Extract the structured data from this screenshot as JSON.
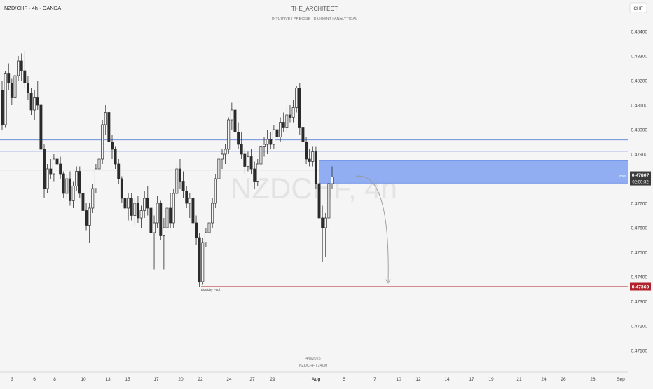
{
  "symbol_label": "NZD/CHF · 4h · OANDA",
  "header": {
    "title": "THE_ARCHITECT",
    "subtitle": "INTUITIVE | PRECISE | DILIGENT | ANALYTICAL"
  },
  "watermark": "NZDCHF, 4h",
  "footer": {
    "date": "4/8/2025",
    "symbol": "NZDCHF | 240M"
  },
  "currency_label": "CHF",
  "colors": {
    "background": "#f5f5f5",
    "candle_body": "#2b2b2b",
    "zone_fill": "#86a6f3",
    "level_line": "#5a82d8",
    "liquidity_line": "#b0222c",
    "price_badge": "#3a3a3a"
  },
  "chart_data": {
    "type": "candlestick",
    "ylim": [
      0.4705,
      0.4845
    ],
    "y_ticks": [
      "0.48400",
      "0.48300",
      "0.48200",
      "0.48100",
      "0.48000",
      "0.47900",
      "0.47700",
      "0.47600",
      "0.47500",
      "0.47400",
      "0.47300",
      "0.47200",
      "0.47100"
    ],
    "x_ticks": [
      "3",
      "6",
      "8",
      "10",
      "13",
      "15",
      "17",
      "20",
      "22",
      "24",
      "27",
      "29",
      "Aug",
      "5",
      "7",
      "10",
      "12",
      "14",
      "17",
      "19",
      "21",
      "24",
      "26",
      "28",
      "Sep"
    ],
    "current_price": "0.47807",
    "countdown": "02:00:32",
    "liquidity_price": "0.47360",
    "liquidity_label": "Liquidity Pool",
    "horizontal_levels": [
      0.47958,
      0.47912,
      0.47835
    ],
    "zone": {
      "top": 0.47876,
      "bottom": 0.47782,
      "label": "6580"
    },
    "projection": {
      "start_price": 0.4781,
      "end_price": 0.47375
    },
    "candles": [
      {
        "o": 0.4816,
        "h": 0.482,
        "l": 0.48,
        "c": 0.4802
      },
      {
        "o": 0.4802,
        "h": 0.4824,
        "l": 0.4801,
        "c": 0.4823
      },
      {
        "o": 0.4823,
        "h": 0.4827,
        "l": 0.4816,
        "c": 0.4819
      },
      {
        "o": 0.4819,
        "h": 0.4821,
        "l": 0.481,
        "c": 0.4813
      },
      {
        "o": 0.4813,
        "h": 0.4824,
        "l": 0.4811,
        "c": 0.4822
      },
      {
        "o": 0.4822,
        "h": 0.483,
        "l": 0.482,
        "c": 0.4828
      },
      {
        "o": 0.4828,
        "h": 0.4831,
        "l": 0.482,
        "c": 0.4824
      },
      {
        "o": 0.4824,
        "h": 0.4832,
        "l": 0.4817,
        "c": 0.4819
      },
      {
        "o": 0.4819,
        "h": 0.4822,
        "l": 0.4812,
        "c": 0.4815
      },
      {
        "o": 0.4815,
        "h": 0.4817,
        "l": 0.4806,
        "c": 0.4808
      },
      {
        "o": 0.4808,
        "h": 0.4816,
        "l": 0.4804,
        "c": 0.4813
      },
      {
        "o": 0.4813,
        "h": 0.482,
        "l": 0.4808,
        "c": 0.481
      },
      {
        "o": 0.481,
        "h": 0.4811,
        "l": 0.479,
        "c": 0.4792
      },
      {
        "o": 0.4792,
        "h": 0.4794,
        "l": 0.4772,
        "c": 0.4776
      },
      {
        "o": 0.4776,
        "h": 0.4786,
        "l": 0.4774,
        "c": 0.4784
      },
      {
        "o": 0.4784,
        "h": 0.4788,
        "l": 0.478,
        "c": 0.4782
      },
      {
        "o": 0.4782,
        "h": 0.479,
        "l": 0.4779,
        "c": 0.4788
      },
      {
        "o": 0.4788,
        "h": 0.4792,
        "l": 0.4783,
        "c": 0.4786
      },
      {
        "o": 0.4786,
        "h": 0.4789,
        "l": 0.478,
        "c": 0.4782
      },
      {
        "o": 0.4782,
        "h": 0.4783,
        "l": 0.4772,
        "c": 0.4774
      },
      {
        "o": 0.4774,
        "h": 0.4782,
        "l": 0.4772,
        "c": 0.478
      },
      {
        "o": 0.478,
        "h": 0.4783,
        "l": 0.4769,
        "c": 0.4771
      },
      {
        "o": 0.4771,
        "h": 0.4779,
        "l": 0.4768,
        "c": 0.4777
      },
      {
        "o": 0.4777,
        "h": 0.4785,
        "l": 0.4775,
        "c": 0.4783
      },
      {
        "o": 0.4783,
        "h": 0.4785,
        "l": 0.4772,
        "c": 0.4774
      },
      {
        "o": 0.4774,
        "h": 0.4776,
        "l": 0.4765,
        "c": 0.4767
      },
      {
        "o": 0.4767,
        "h": 0.477,
        "l": 0.4759,
        "c": 0.4761
      },
      {
        "o": 0.4761,
        "h": 0.477,
        "l": 0.4754,
        "c": 0.4768
      },
      {
        "o": 0.4768,
        "h": 0.4778,
        "l": 0.4766,
        "c": 0.4776
      },
      {
        "o": 0.4776,
        "h": 0.4786,
        "l": 0.4774,
        "c": 0.4784
      },
      {
        "o": 0.4784,
        "h": 0.479,
        "l": 0.4782,
        "c": 0.4788
      },
      {
        "o": 0.4788,
        "h": 0.4804,
        "l": 0.4786,
        "c": 0.4802
      },
      {
        "o": 0.4802,
        "h": 0.481,
        "l": 0.4798,
        "c": 0.4807
      },
      {
        "o": 0.4807,
        "h": 0.4808,
        "l": 0.4793,
        "c": 0.4795
      },
      {
        "o": 0.4795,
        "h": 0.4798,
        "l": 0.4788,
        "c": 0.4792
      },
      {
        "o": 0.4792,
        "h": 0.4793,
        "l": 0.4784,
        "c": 0.4786
      },
      {
        "o": 0.4786,
        "h": 0.4788,
        "l": 0.4778,
        "c": 0.478
      },
      {
        "o": 0.478,
        "h": 0.4781,
        "l": 0.477,
        "c": 0.4772
      },
      {
        "o": 0.4772,
        "h": 0.4776,
        "l": 0.4766,
        "c": 0.4768
      },
      {
        "o": 0.4768,
        "h": 0.4774,
        "l": 0.4763,
        "c": 0.4772
      },
      {
        "o": 0.4772,
        "h": 0.4774,
        "l": 0.4763,
        "c": 0.4765
      },
      {
        "o": 0.4765,
        "h": 0.4772,
        "l": 0.4761,
        "c": 0.477
      },
      {
        "o": 0.477,
        "h": 0.4773,
        "l": 0.4762,
        "c": 0.4764
      },
      {
        "o": 0.4764,
        "h": 0.4769,
        "l": 0.476,
        "c": 0.4767
      },
      {
        "o": 0.4767,
        "h": 0.4775,
        "l": 0.4764,
        "c": 0.4772
      },
      {
        "o": 0.4772,
        "h": 0.4777,
        "l": 0.4765,
        "c": 0.4768
      },
      {
        "o": 0.4768,
        "h": 0.477,
        "l": 0.4755,
        "c": 0.4758
      },
      {
        "o": 0.4758,
        "h": 0.4765,
        "l": 0.4743,
        "c": 0.4762
      },
      {
        "o": 0.4762,
        "h": 0.4773,
        "l": 0.476,
        "c": 0.477
      },
      {
        "o": 0.477,
        "h": 0.4771,
        "l": 0.4755,
        "c": 0.4757
      },
      {
        "o": 0.4757,
        "h": 0.4764,
        "l": 0.4743,
        "c": 0.476
      },
      {
        "o": 0.476,
        "h": 0.477,
        "l": 0.4758,
        "c": 0.4768
      },
      {
        "o": 0.4768,
        "h": 0.4774,
        "l": 0.476,
        "c": 0.4762
      },
      {
        "o": 0.4762,
        "h": 0.4776,
        "l": 0.476,
        "c": 0.4774
      },
      {
        "o": 0.4774,
        "h": 0.4786,
        "l": 0.4772,
        "c": 0.4784
      },
      {
        "o": 0.4784,
        "h": 0.4788,
        "l": 0.4776,
        "c": 0.4779
      },
      {
        "o": 0.4779,
        "h": 0.4783,
        "l": 0.4772,
        "c": 0.4775
      },
      {
        "o": 0.4775,
        "h": 0.4777,
        "l": 0.4768,
        "c": 0.477
      },
      {
        "o": 0.477,
        "h": 0.4774,
        "l": 0.4764,
        "c": 0.4772
      },
      {
        "o": 0.4772,
        "h": 0.4774,
        "l": 0.476,
        "c": 0.4762
      },
      {
        "o": 0.4762,
        "h": 0.4765,
        "l": 0.4753,
        "c": 0.4756
      },
      {
        "o": 0.4756,
        "h": 0.4758,
        "l": 0.4736,
        "c": 0.4738
      },
      {
        "o": 0.4738,
        "h": 0.4756,
        "l": 0.4737,
        "c": 0.4754
      },
      {
        "o": 0.4754,
        "h": 0.476,
        "l": 0.4752,
        "c": 0.4758
      },
      {
        "o": 0.4758,
        "h": 0.4764,
        "l": 0.4756,
        "c": 0.4762
      },
      {
        "o": 0.4762,
        "h": 0.4772,
        "l": 0.476,
        "c": 0.477
      },
      {
        "o": 0.477,
        "h": 0.4782,
        "l": 0.4768,
        "c": 0.478
      },
      {
        "o": 0.478,
        "h": 0.479,
        "l": 0.4778,
        "c": 0.4788
      },
      {
        "o": 0.4788,
        "h": 0.4792,
        "l": 0.4784,
        "c": 0.479
      },
      {
        "o": 0.479,
        "h": 0.4794,
        "l": 0.4786,
        "c": 0.4792
      },
      {
        "o": 0.4792,
        "h": 0.4805,
        "l": 0.479,
        "c": 0.4804
      },
      {
        "o": 0.4804,
        "h": 0.4811,
        "l": 0.48,
        "c": 0.4808
      },
      {
        "o": 0.4808,
        "h": 0.4809,
        "l": 0.4796,
        "c": 0.4799
      },
      {
        "o": 0.4799,
        "h": 0.4803,
        "l": 0.4792,
        "c": 0.4794
      },
      {
        "o": 0.4794,
        "h": 0.4799,
        "l": 0.4788,
        "c": 0.479
      },
      {
        "o": 0.479,
        "h": 0.4792,
        "l": 0.4782,
        "c": 0.4785
      },
      {
        "o": 0.4785,
        "h": 0.4791,
        "l": 0.4783,
        "c": 0.4789
      },
      {
        "o": 0.4789,
        "h": 0.4792,
        "l": 0.4782,
        "c": 0.4784
      },
      {
        "o": 0.4784,
        "h": 0.4787,
        "l": 0.4776,
        "c": 0.4779
      },
      {
        "o": 0.4779,
        "h": 0.4788,
        "l": 0.4777,
        "c": 0.4786
      },
      {
        "o": 0.4786,
        "h": 0.4795,
        "l": 0.4784,
        "c": 0.4793
      },
      {
        "o": 0.4793,
        "h": 0.4797,
        "l": 0.4789,
        "c": 0.4794
      },
      {
        "o": 0.4794,
        "h": 0.48,
        "l": 0.479,
        "c": 0.4796
      },
      {
        "o": 0.4796,
        "h": 0.4799,
        "l": 0.4792,
        "c": 0.4794
      },
      {
        "o": 0.4794,
        "h": 0.4802,
        "l": 0.4792,
        "c": 0.48
      },
      {
        "o": 0.48,
        "h": 0.4803,
        "l": 0.4795,
        "c": 0.4797
      },
      {
        "o": 0.4797,
        "h": 0.4805,
        "l": 0.4795,
        "c": 0.4803
      },
      {
        "o": 0.4803,
        "h": 0.4807,
        "l": 0.4799,
        "c": 0.4801
      },
      {
        "o": 0.4801,
        "h": 0.4809,
        "l": 0.4799,
        "c": 0.4806
      },
      {
        "o": 0.4806,
        "h": 0.481,
        "l": 0.4803,
        "c": 0.4805
      },
      {
        "o": 0.4805,
        "h": 0.4812,
        "l": 0.4803,
        "c": 0.4809
      },
      {
        "o": 0.4809,
        "h": 0.4818,
        "l": 0.4807,
        "c": 0.4817
      },
      {
        "o": 0.4817,
        "h": 0.4819,
        "l": 0.4798,
        "c": 0.4801
      },
      {
        "o": 0.4801,
        "h": 0.4805,
        "l": 0.4793,
        "c": 0.4795
      },
      {
        "o": 0.4795,
        "h": 0.4797,
        "l": 0.4786,
        "c": 0.4788
      },
      {
        "o": 0.4788,
        "h": 0.4792,
        "l": 0.4785,
        "c": 0.4787
      },
      {
        "o": 0.4787,
        "h": 0.4793,
        "l": 0.4785,
        "c": 0.4791
      },
      {
        "o": 0.4791,
        "h": 0.4793,
        "l": 0.4776,
        "c": 0.4778
      },
      {
        "o": 0.4778,
        "h": 0.4779,
        "l": 0.4762,
        "c": 0.4764
      },
      {
        "o": 0.4764,
        "h": 0.4769,
        "l": 0.4746,
        "c": 0.476
      },
      {
        "o": 0.476,
        "h": 0.4766,
        "l": 0.4748,
        "c": 0.4764
      },
      {
        "o": 0.4764,
        "h": 0.478,
        "l": 0.476,
        "c": 0.4778
      },
      {
        "o": 0.4778,
        "h": 0.4785,
        "l": 0.4776,
        "c": 0.47807
      }
    ]
  }
}
